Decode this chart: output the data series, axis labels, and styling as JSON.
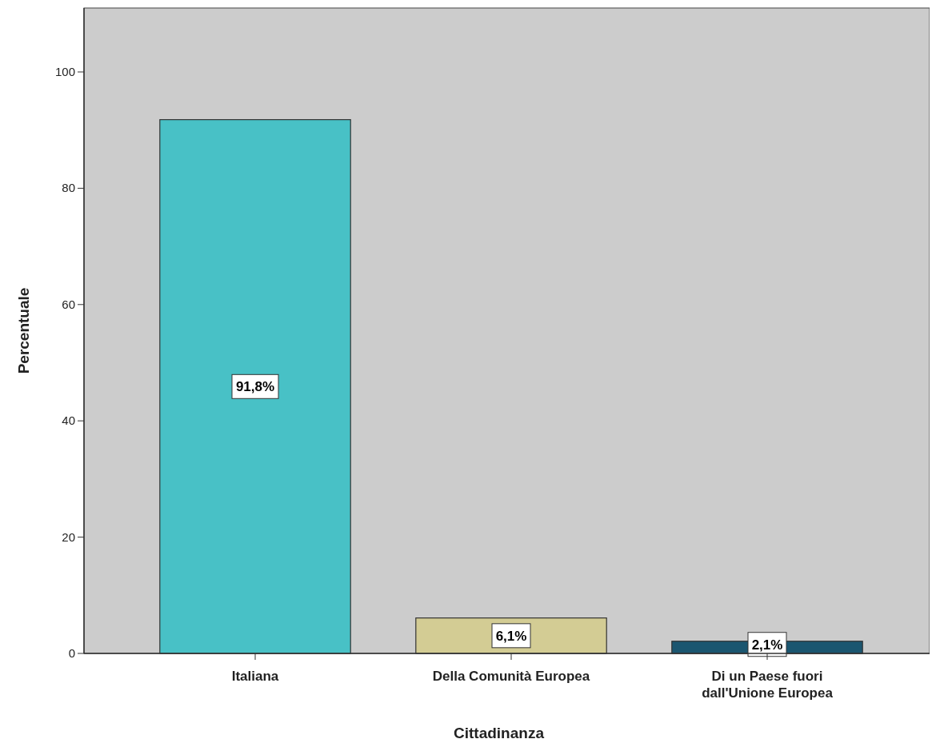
{
  "chart_data": {
    "type": "bar",
    "xlabel": "Cittadinanza",
    "ylabel": "Percentuale",
    "categories": [
      "Italiana",
      "Della Comunità Europea",
      "Di un Paese fuori dall'Unione Europea"
    ],
    "values": [
      91.8,
      6.1,
      2.1
    ],
    "colors": [
      "#48c1c6",
      "#d3cc94",
      "#1b5670"
    ],
    "value_labels": [
      "91,8%",
      "6,1%",
      "2,1%"
    ],
    "ylim": [
      0,
      111
    ],
    "yticks": [
      0,
      20,
      40,
      60,
      80,
      100
    ],
    "grid": false
  }
}
